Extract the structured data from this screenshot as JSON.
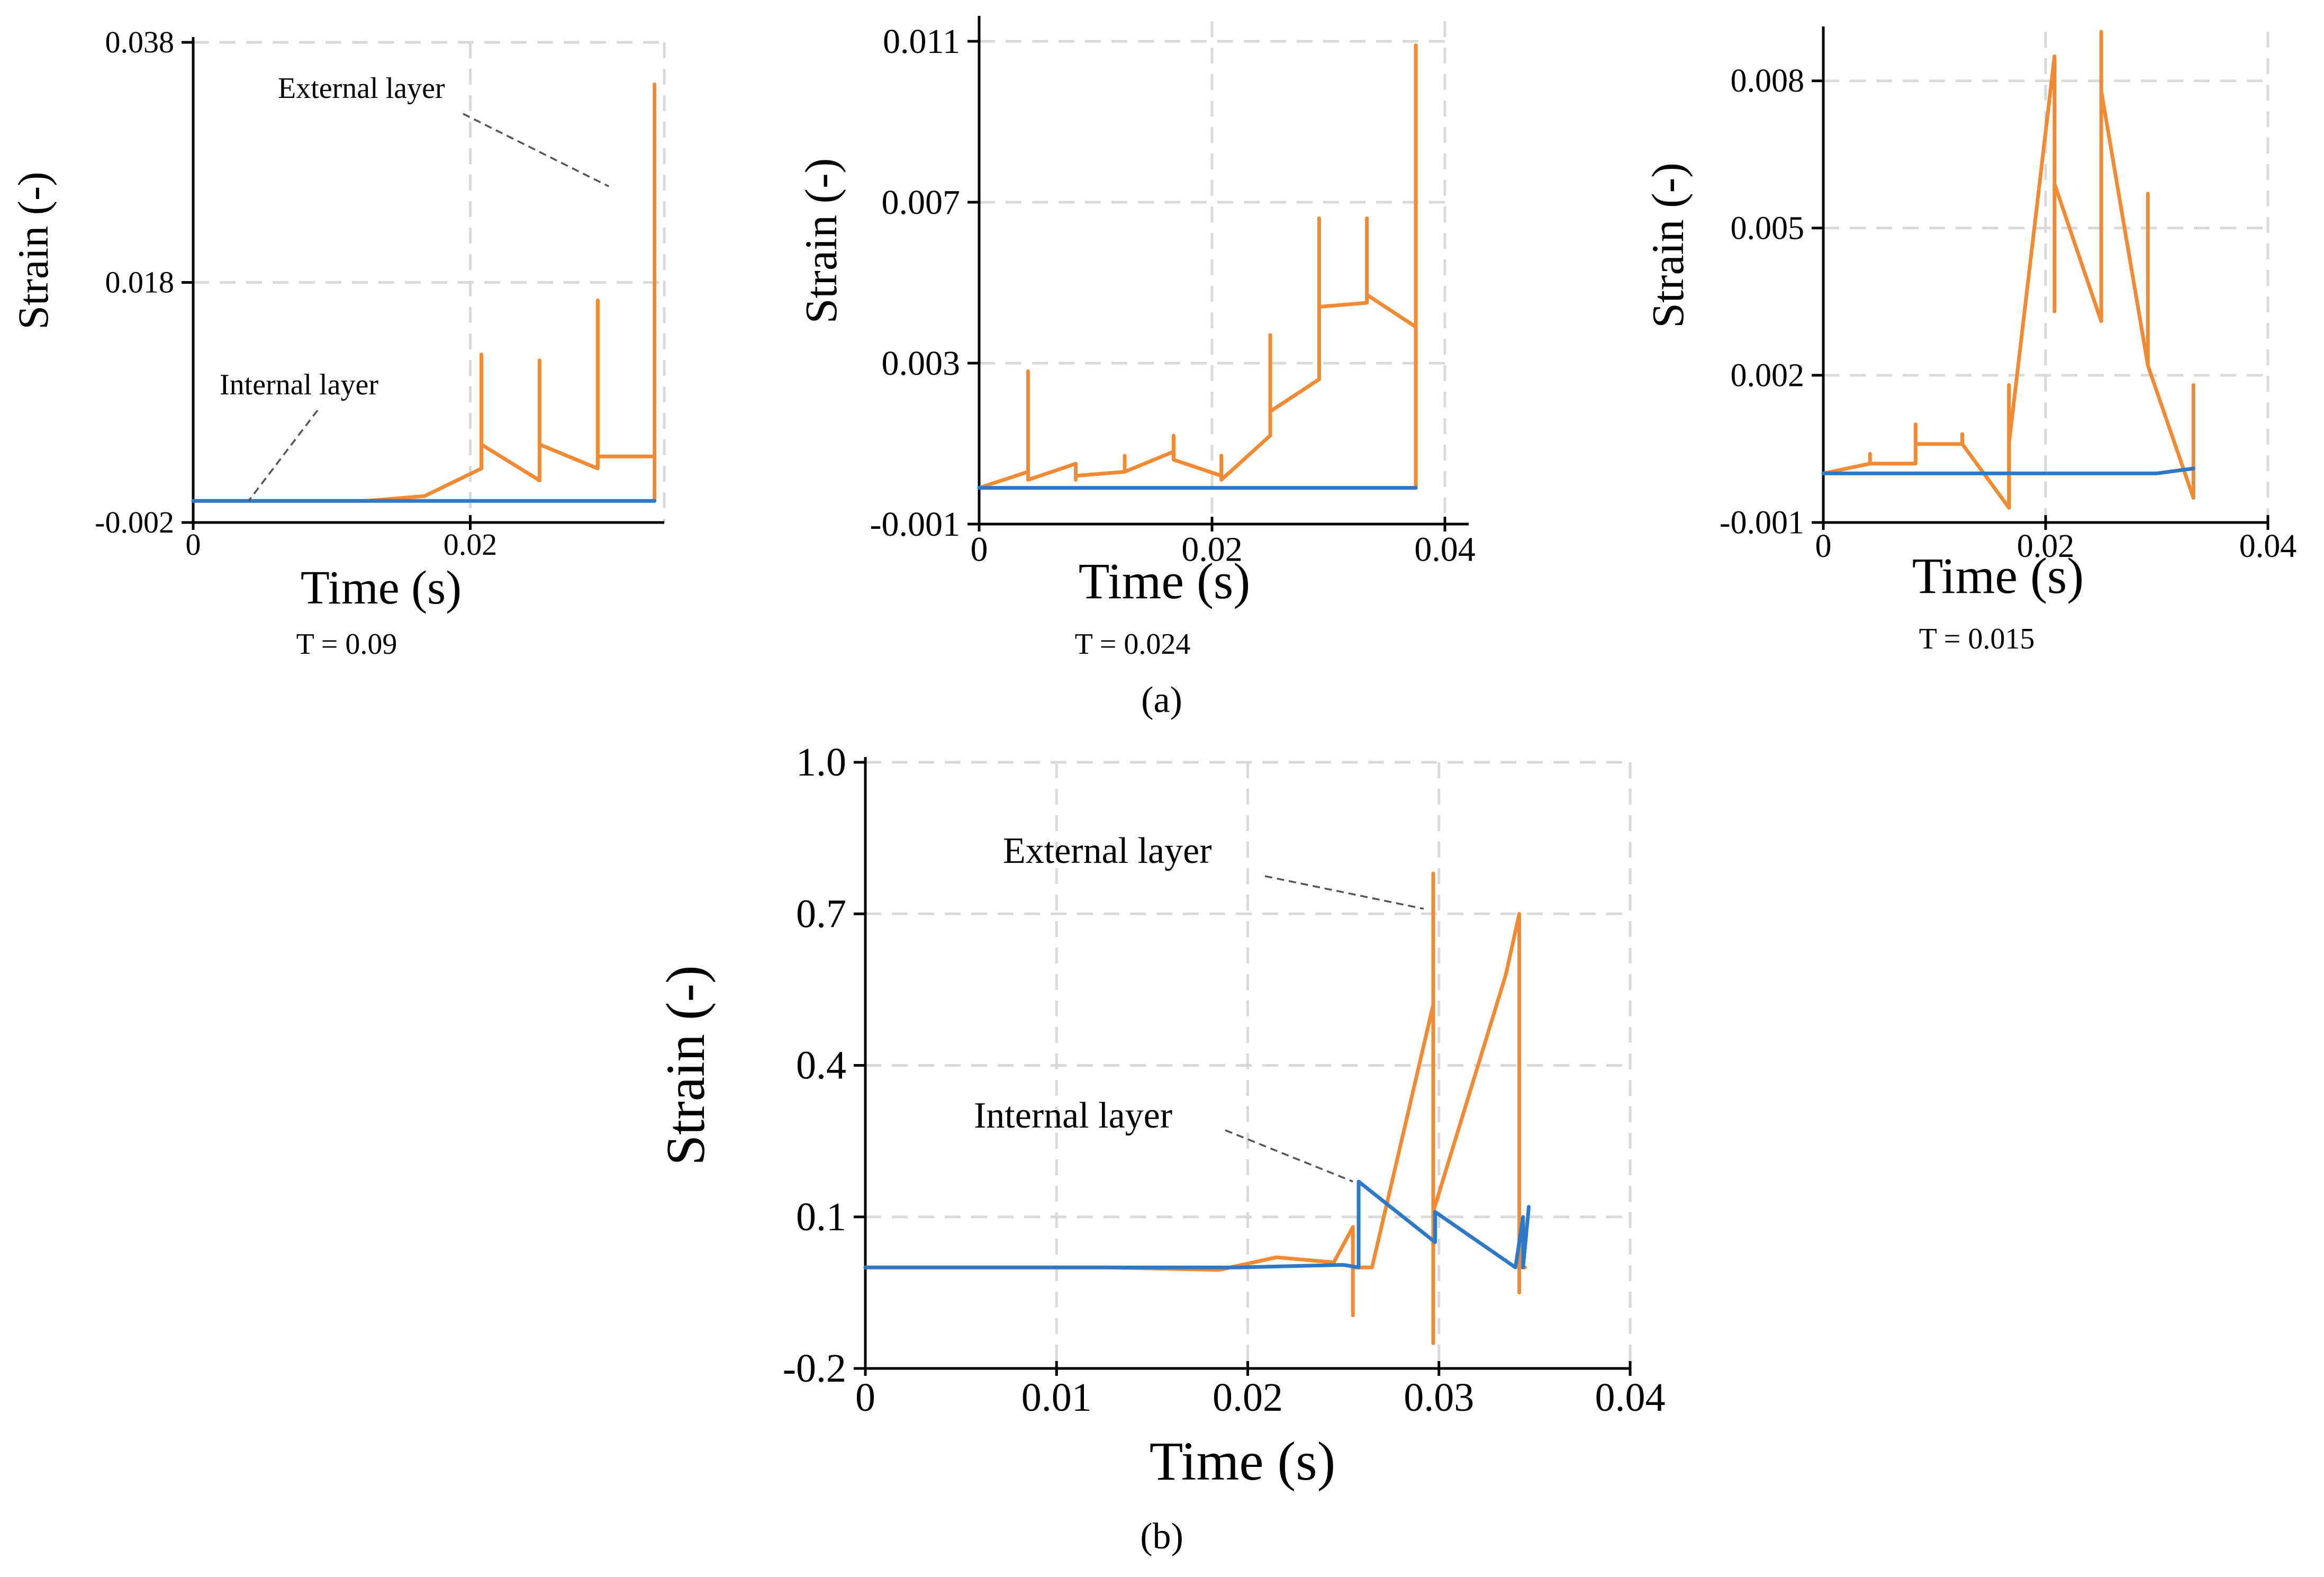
{
  "colors": {
    "external": "#f08a35",
    "internal": "#2f78c6"
  },
  "captions": {
    "a": "(a)",
    "b": "(b)"
  },
  "chart_data": [
    {
      "type": "line",
      "id": "a1",
      "xlabel": "Time (s)",
      "ylabel": "Strain (-)",
      "xlim": [
        0,
        0.034
      ],
      "ylim": [
        -0.002,
        0.038
      ],
      "xticks": [
        0,
        0.02
      ],
      "xtick_labels": [
        "0",
        "0.02"
      ],
      "yticks": [
        -0.002,
        0.018,
        0.038
      ],
      "ytick_labels": [
        "-0.002",
        "0.018",
        "0.038"
      ],
      "subcaption": "T = 0.09",
      "annotations": [
        {
          "text": "External layer",
          "series": "external"
        },
        {
          "text": "Internal layer",
          "series": "internal"
        }
      ],
      "series": [
        {
          "key": "external",
          "x": [
            0,
            0.0042,
            0.0125,
            0.0167,
            0.0208,
            0.0208,
            0.0208,
            0.025,
            0.025,
            0.025,
            0.0292,
            0.0292,
            0.0292,
            0.0333,
            0.0333,
            0.0333
          ],
          "y": [
            -0.0002,
            -0.0002,
            -0.0002,
            0.0002,
            0.0025,
            0.012,
            0.0045,
            0.0015,
            0.0115,
            0.0045,
            0.0025,
            0.0165,
            0.0035,
            0.0035,
            0.0345,
            -0.0002
          ]
        },
        {
          "key": "internal",
          "x": [
            0,
            0.0333
          ],
          "y": [
            -0.0002,
            -0.0002
          ]
        }
      ]
    },
    {
      "type": "line",
      "id": "a2",
      "xlabel": "Time (s)",
      "ylabel": "Strain (-)",
      "xlim": [
        0,
        0.04
      ],
      "ylim": [
        -0.001,
        0.0115
      ],
      "xticks": [
        0,
        0.02,
        0.04
      ],
      "xtick_labels": [
        "0",
        "0.02",
        "0.04"
      ],
      "yticks": [
        -0.001,
        0.003,
        0.007,
        0.011
      ],
      "ytick_labels": [
        "-0.001",
        "0.003",
        "0.007",
        "0.011"
      ],
      "subcaption": "T = 0.024",
      "series": [
        {
          "key": "external",
          "x": [
            0,
            0.0042,
            0.0042,
            0.0042,
            0.0083,
            0.0083,
            0.0083,
            0.0125,
            0.0125,
            0.0125,
            0.0167,
            0.0167,
            0.0167,
            0.0208,
            0.0208,
            0.0208,
            0.025,
            0.025,
            0.025,
            0.0292,
            0.0292,
            0.0292,
            0.0333,
            0.0333,
            0.0333,
            0.0375,
            0.0375,
            0.0375
          ],
          "y": [
            -0.0001,
            0.0003,
            0.0028,
            0.0001,
            0.0005,
            0.0001,
            0.0002,
            0.0003,
            0.0007,
            0.0003,
            0.0008,
            0.0012,
            0.0006,
            0.0002,
            0.0007,
            0.0001,
            0.0012,
            0.0037,
            0.0018,
            0.0026,
            0.0066,
            0.0044,
            0.0045,
            0.0066,
            0.0047,
            0.0039,
            0.0109,
            -0.0001
          ]
        },
        {
          "key": "internal",
          "x": [
            0,
            0.0375
          ],
          "y": [
            -0.0001,
            -0.0001
          ]
        }
      ]
    },
    {
      "type": "line",
      "id": "a3",
      "xlabel": "Time (s)",
      "ylabel": "Strain (-)",
      "xlim": [
        0,
        0.04
      ],
      "ylim": [
        -0.001,
        0.009
      ],
      "xticks": [
        0,
        0.02,
        0.04
      ],
      "xtick_labels": [
        "0",
        "0.02",
        "0.04"
      ],
      "yticks": [
        -0.001,
        0.002,
        0.005,
        0.008
      ],
      "ytick_labels": [
        "-0.001",
        "0.002",
        "0.005",
        "0.008"
      ],
      "subcaption": "T = 0.015",
      "series": [
        {
          "key": "external",
          "x": [
            0,
            0.0042,
            0.0042,
            0.0042,
            0.0083,
            0.0083,
            0.0083,
            0.0125,
            0.0125,
            0.0125,
            0.0167,
            0.0167,
            0.0167,
            0.0208,
            0.0208,
            0.0208,
            0.025,
            0.025,
            0.025,
            0.0292,
            0.0292,
            0.0292,
            0.0333,
            0.0333,
            0.0333
          ],
          "y": [
            0,
            0.0002,
            0.0004,
            0.0002,
            0.0002,
            0.001,
            0.0006,
            0.0006,
            0.0008,
            0.0006,
            -0.0007,
            0.0018,
            0.0006,
            0.0085,
            0.0033,
            0.0059,
            0.0031,
            0.009,
            0.0078,
            0.0022,
            0.0057,
            0.0022,
            -0.0005,
            0.0018,
            -0.0004
          ]
        },
        {
          "key": "internal",
          "x": [
            0,
            0.03,
            0.0333
          ],
          "y": [
            0,
            0,
            0.0001
          ]
        }
      ]
    },
    {
      "type": "line",
      "id": "b",
      "xlabel": "Time (s)",
      "ylabel": "Strain (-)",
      "xlim": [
        0,
        0.04
      ],
      "ylim": [
        -0.2,
        1.0
      ],
      "xticks": [
        0,
        0.01,
        0.02,
        0.03,
        0.04
      ],
      "xtick_labels": [
        "0",
        "0.01",
        "0.02",
        "0.03",
        "0.04"
      ],
      "yticks": [
        -0.2,
        0.1,
        0.4,
        0.7,
        1.0
      ],
      "ytick_labels": [
        "-0.2",
        "0.1",
        "0.4",
        "0.7",
        "1.0"
      ],
      "annotations": [
        {
          "text": "External layer",
          "series": "external"
        },
        {
          "text": "Internal layer",
          "series": "internal"
        }
      ],
      "series": [
        {
          "key": "external",
          "x": [
            0,
            0.0125,
            0.0185,
            0.0215,
            0.0245,
            0.0255,
            0.0255,
            0.0255,
            0.0265,
            0.0297,
            0.0297,
            0.0297,
            0.0297,
            0.0335,
            0.0342,
            0.0342,
            0.0342,
            0.0345
          ],
          "y": [
            0,
            0,
            -0.005,
            0.02,
            0.01,
            0.08,
            -0.095,
            0.0,
            0.0,
            0.52,
            0.78,
            -0.15,
            0.11,
            0.58,
            0.7,
            -0.05,
            0.0,
            0.0
          ]
        },
        {
          "key": "internal",
          "x": [
            0,
            0.0195,
            0.025,
            0.0258,
            0.0258,
            0.0298,
            0.0298,
            0.034,
            0.0344,
            0.0344,
            0.0347
          ],
          "y": [
            0,
            0,
            0.005,
            0.0,
            0.17,
            0.05,
            0.11,
            0.0,
            0.1,
            0.0,
            0.12
          ]
        }
      ]
    }
  ]
}
